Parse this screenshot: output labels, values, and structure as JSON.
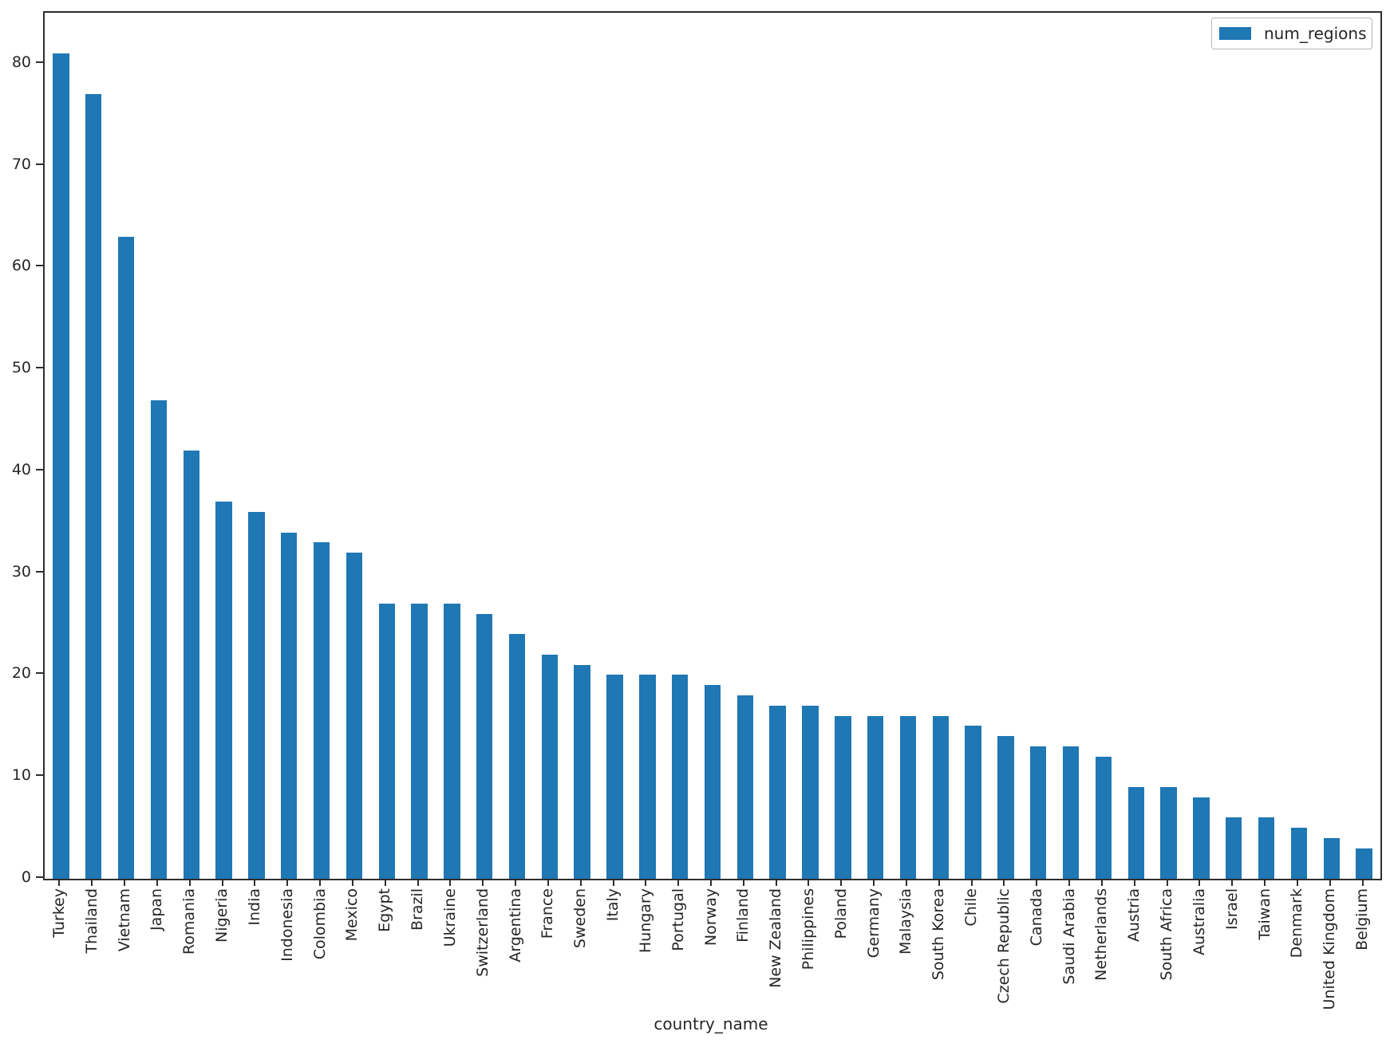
{
  "chart_data": {
    "type": "bar",
    "title": "",
    "xlabel": "country_name",
    "ylabel": "",
    "grid": false,
    "legend_position": "upper right",
    "bar_color": "#1f77b4",
    "axis_color": "#2e2e2e",
    "text_color": "#262626",
    "ylim": [
      0,
      85
    ],
    "yticks": [
      0,
      10,
      20,
      30,
      40,
      50,
      60,
      70,
      80
    ],
    "categories": [
      "Turkey",
      "Thailand",
      "Vietnam",
      "Japan",
      "Romania",
      "Nigeria",
      "India",
      "Indonesia",
      "Colombia",
      "Mexico",
      "Egypt",
      "Brazil",
      "Ukraine",
      "Switzerland",
      "Argentina",
      "France",
      "Sweden",
      "Italy",
      "Hungary",
      "Portugal",
      "Norway",
      "Finland",
      "New Zealand",
      "Philippines",
      "Poland",
      "Germany",
      "Malaysia",
      "South Korea",
      "Chile",
      "Czech Republic",
      "Canada",
      "Saudi Arabia",
      "Netherlands",
      "Austria",
      "South Africa",
      "Australia",
      "Israel",
      "Taiwan",
      "Denmark",
      "United Kingdom",
      "Belgium"
    ],
    "series": [
      {
        "name": "num_regions",
        "values": [
          81,
          77,
          63,
          47,
          42,
          37,
          36,
          34,
          33,
          32,
          27,
          27,
          27,
          26,
          24,
          22,
          21,
          20,
          20,
          20,
          19,
          18,
          17,
          17,
          16,
          16,
          16,
          16,
          15,
          14,
          13,
          13,
          12,
          9,
          9,
          8,
          6,
          6,
          5,
          4,
          3
        ]
      }
    ]
  }
}
